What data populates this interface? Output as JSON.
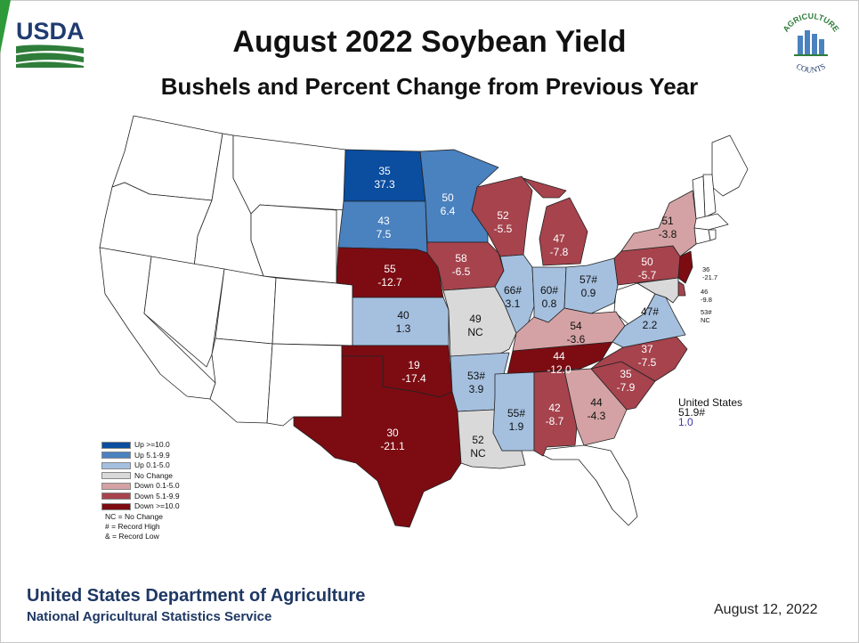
{
  "header": {
    "title": "August 2022 Soybean Yield",
    "subtitle": "Bushels and Percent Change from Previous Year",
    "usda_logo_text": "USDA",
    "ag_logo_text_top": "AGRICULTURE",
    "ag_logo_text_bottom": "COUNTS"
  },
  "legend": {
    "items": [
      {
        "label": "Up >=10.0",
        "color": "#0b4d9f"
      },
      {
        "label": "Up 5.1-9.9",
        "color": "#4a81bf"
      },
      {
        "label": "Up 0.1-5.0",
        "color": "#a5c0df"
      },
      {
        "label": "No Change",
        "color": "#d9d9d9"
      },
      {
        "label": "Down 0.1-5.0",
        "color": "#d4a2a4"
      },
      {
        "label": "Down 5.1-9.9",
        "color": "#a6434d"
      },
      {
        "label": "Down >=10.0",
        "color": "#7c0c12"
      }
    ],
    "notes": [
      "NC = No Change",
      "# = Record High",
      "& = Record Low"
    ]
  },
  "map_data": {
    "states": [
      {
        "id": "ND",
        "yield": "35",
        "change": "37.3",
        "color": "#0b4d9f"
      },
      {
        "id": "SD",
        "yield": "43",
        "change": "7.5",
        "color": "#4a81bf"
      },
      {
        "id": "MN",
        "yield": "50",
        "change": "6.4",
        "color": "#4a81bf"
      },
      {
        "id": "NE",
        "yield": "55",
        "change": "-12.7",
        "color": "#7c0c12"
      },
      {
        "id": "IA",
        "yield": "58",
        "change": "-6.5",
        "color": "#a6434d"
      },
      {
        "id": "WI",
        "yield": "52",
        "change": "-5.5",
        "color": "#a6434d"
      },
      {
        "id": "MI",
        "yield": "47",
        "change": "-7.8",
        "color": "#a6434d"
      },
      {
        "id": "KS",
        "yield": "40",
        "change": "1.3",
        "color": "#a5c0df"
      },
      {
        "id": "MO",
        "yield": "49",
        "change": "NC",
        "color": "#d9d9d9"
      },
      {
        "id": "IL",
        "yield": "66#",
        "change": "3.1",
        "color": "#a5c0df"
      },
      {
        "id": "IN",
        "yield": "60#",
        "change": "0.8",
        "color": "#a5c0df"
      },
      {
        "id": "OH",
        "yield": "57#",
        "change": "0.9",
        "color": "#a5c0df"
      },
      {
        "id": "OK",
        "yield": "19",
        "change": "-17.4",
        "color": "#7c0c12"
      },
      {
        "id": "AR",
        "yield": "53#",
        "change": "3.9",
        "color": "#a5c0df"
      },
      {
        "id": "TN",
        "yield": "44",
        "change": "-12.0",
        "color": "#7c0c12"
      },
      {
        "id": "KY",
        "yield": "54",
        "change": "-3.6",
        "color": "#d4a2a4"
      },
      {
        "id": "TX",
        "yield": "30",
        "change": "-21.1",
        "color": "#7c0c12"
      },
      {
        "id": "LA",
        "yield": "52",
        "change": "NC",
        "color": "#d9d9d9"
      },
      {
        "id": "MS",
        "yield": "55#",
        "change": "1.9",
        "color": "#a5c0df"
      },
      {
        "id": "AL",
        "yield": "42",
        "change": "-8.7",
        "color": "#a6434d"
      },
      {
        "id": "GA",
        "yield": "44",
        "change": "-4.3",
        "color": "#d4a2a4"
      },
      {
        "id": "SC",
        "yield": "35",
        "change": "-7.9",
        "color": "#a6434d"
      },
      {
        "id": "NC",
        "yield": "37",
        "change": "-7.5",
        "color": "#a6434d"
      },
      {
        "id": "VA",
        "yield": "47#",
        "change": "2.2",
        "color": "#a5c0df"
      },
      {
        "id": "PA",
        "yield": "50",
        "change": "-5.7",
        "color": "#a6434d"
      },
      {
        "id": "NY",
        "yield": "51",
        "change": "-3.8",
        "color": "#d4a2a4"
      },
      {
        "id": "NJ",
        "yield": "36",
        "change": "-21.7",
        "color": "#7c0c12"
      },
      {
        "id": "DE",
        "yield": "46",
        "change": "-9.8",
        "color": "#a6434d"
      },
      {
        "id": "MD",
        "yield": "53#",
        "change": "NC",
        "color": "#d9d9d9"
      }
    ],
    "united_states": {
      "label": "United States",
      "yield": "51.9#",
      "change": "1.0"
    }
  },
  "footer": {
    "department": "United States Department of Agriculture",
    "service": "National Agricultural Statistics Service",
    "date": "August 12, 2022"
  }
}
